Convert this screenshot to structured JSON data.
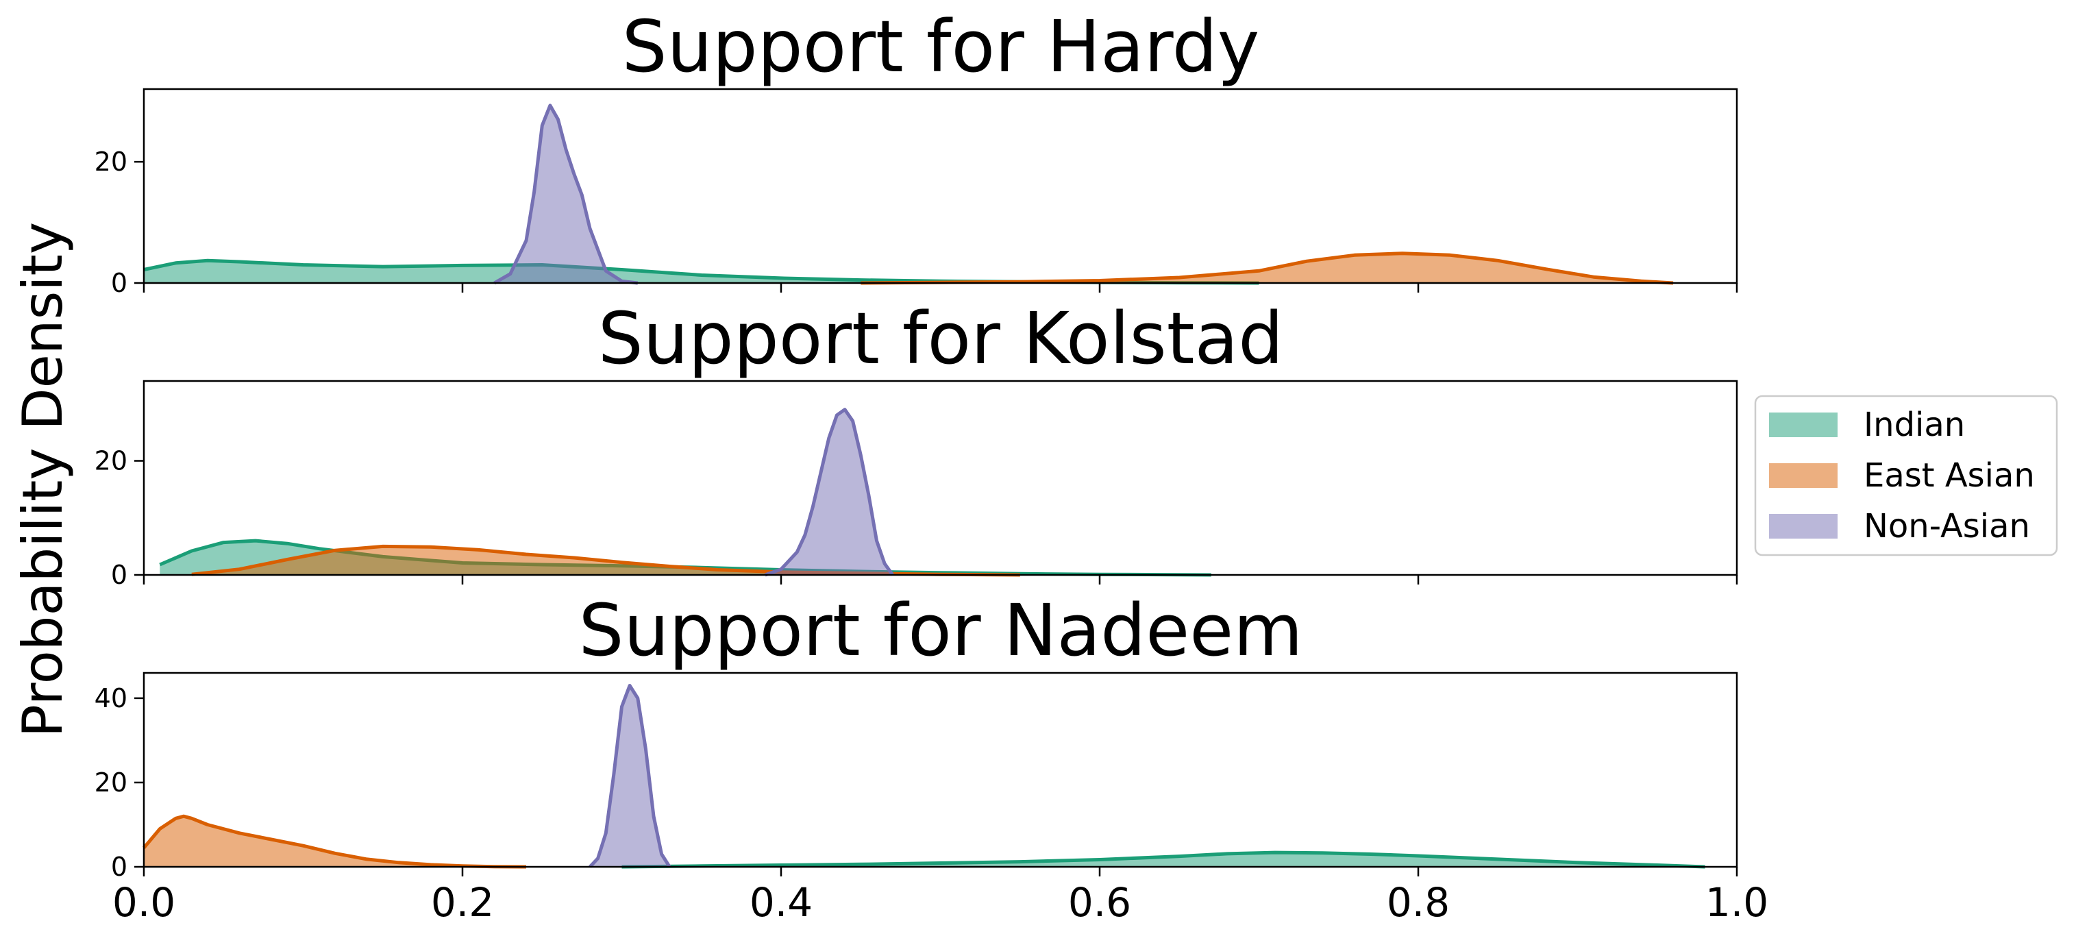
{
  "figure": {
    "ylabel": "Probability Density"
  },
  "colors": {
    "Indian": "#1b9e77",
    "East Asian": "#d95f02",
    "Non-Asian": "#7570b3"
  },
  "legend": {
    "placement": "right-center",
    "entries": [
      {
        "name": "Indian",
        "color": "#1b9e77"
      },
      {
        "name": "East Asian",
        "color": "#d95f02"
      },
      {
        "name": "Non-Asian",
        "color": "#7570b3"
      }
    ]
  },
  "chart_data": [
    {
      "type": "area",
      "title": "Support for Hardy",
      "xlim": [
        0,
        1
      ],
      "ylim": [
        0,
        32
      ],
      "yticks": [
        0,
        20
      ],
      "xticks": [
        0.0,
        0.2,
        0.4,
        0.6,
        0.8,
        1.0
      ],
      "xtick_labels": [],
      "grid": false,
      "series": [
        {
          "name": "Indian",
          "color": "#1b9e77",
          "x": [
            0.0,
            0.02,
            0.04,
            0.06,
            0.1,
            0.15,
            0.2,
            0.25,
            0.3,
            0.35,
            0.4,
            0.45,
            0.5,
            0.55,
            0.6,
            0.65,
            0.7
          ],
          "y": [
            2.2,
            3.3,
            3.7,
            3.5,
            3.0,
            2.7,
            2.9,
            3.0,
            2.2,
            1.3,
            0.8,
            0.5,
            0.3,
            0.2,
            0.1,
            0.05,
            0.0
          ]
        },
        {
          "name": "East Asian",
          "color": "#d95f02",
          "x": [
            0.45,
            0.5,
            0.55,
            0.6,
            0.65,
            0.7,
            0.73,
            0.76,
            0.79,
            0.82,
            0.85,
            0.88,
            0.91,
            0.94,
            0.96
          ],
          "y": [
            0.0,
            0.1,
            0.2,
            0.4,
            0.9,
            2.0,
            3.6,
            4.6,
            4.9,
            4.6,
            3.7,
            2.3,
            1.0,
            0.3,
            0.0
          ]
        },
        {
          "name": "Non-Asian",
          "color": "#7570b3",
          "x": [
            0.22,
            0.23,
            0.24,
            0.245,
            0.25,
            0.255,
            0.26,
            0.265,
            0.27,
            0.275,
            0.28,
            0.29,
            0.3,
            0.31
          ],
          "y": [
            0.0,
            1.5,
            7.0,
            15.0,
            26.0,
            29.3,
            27.0,
            22.0,
            18.0,
            14.5,
            9.0,
            2.0,
            0.3,
            0.0
          ]
        }
      ]
    },
    {
      "type": "area",
      "title": "Support for Kolstad",
      "xlim": [
        0,
        1
      ],
      "ylim": [
        0,
        34
      ],
      "yticks": [
        0,
        20
      ],
      "xticks": [
        0.0,
        0.2,
        0.4,
        0.6,
        0.8,
        1.0
      ],
      "xtick_labels": [],
      "grid": false,
      "series": [
        {
          "name": "Indian",
          "color": "#1b9e77",
          "x": [
            0.01,
            0.03,
            0.05,
            0.07,
            0.09,
            0.11,
            0.15,
            0.2,
            0.25,
            0.3,
            0.35,
            0.4,
            0.45,
            0.5,
            0.55,
            0.6,
            0.67
          ],
          "y": [
            1.8,
            4.2,
            5.7,
            6.0,
            5.5,
            4.6,
            3.2,
            2.1,
            1.8,
            1.6,
            1.3,
            0.9,
            0.6,
            0.4,
            0.2,
            0.1,
            0.0
          ]
        },
        {
          "name": "East Asian",
          "color": "#d95f02",
          "x": [
            0.03,
            0.06,
            0.09,
            0.12,
            0.15,
            0.18,
            0.21,
            0.24,
            0.27,
            0.3,
            0.33,
            0.36,
            0.4,
            0.45,
            0.5,
            0.55
          ],
          "y": [
            0.1,
            1.0,
            2.7,
            4.3,
            5.0,
            4.9,
            4.4,
            3.6,
            3.0,
            2.2,
            1.5,
            0.9,
            0.5,
            0.3,
            0.1,
            0.0
          ]
        },
        {
          "name": "Non-Asian",
          "color": "#7570b3",
          "x": [
            0.39,
            0.4,
            0.41,
            0.415,
            0.42,
            0.425,
            0.43,
            0.435,
            0.44,
            0.445,
            0.45,
            0.455,
            0.46,
            0.465,
            0.47
          ],
          "y": [
            0.0,
            1.0,
            4.0,
            7.0,
            12.0,
            18.0,
            24.0,
            28.0,
            29.0,
            27.0,
            21.0,
            14.0,
            6.0,
            2.0,
            0.0
          ]
        }
      ]
    },
    {
      "type": "area",
      "title": "Support for Nadeem",
      "xlim": [
        0,
        1
      ],
      "ylim": [
        0,
        46
      ],
      "yticks": [
        0,
        20,
        40
      ],
      "xticks": [
        0.0,
        0.2,
        0.4,
        0.6,
        0.8,
        1.0
      ],
      "xtick_labels": [
        "0.0",
        "0.2",
        "0.4",
        "0.6",
        "0.8",
        "1.0"
      ],
      "grid": false,
      "series": [
        {
          "name": "Indian",
          "color": "#1b9e77",
          "x": [
            0.3,
            0.35,
            0.4,
            0.45,
            0.5,
            0.55,
            0.6,
            0.65,
            0.68,
            0.71,
            0.74,
            0.77,
            0.8,
            0.85,
            0.9,
            0.95,
            0.98
          ],
          "y": [
            0.0,
            0.2,
            0.4,
            0.6,
            0.9,
            1.2,
            1.7,
            2.5,
            3.1,
            3.4,
            3.3,
            3.0,
            2.6,
            1.8,
            1.0,
            0.4,
            0.0
          ]
        },
        {
          "name": "East Asian",
          "color": "#d95f02",
          "x": [
            0.0,
            0.01,
            0.02,
            0.025,
            0.03,
            0.04,
            0.06,
            0.08,
            0.1,
            0.12,
            0.14,
            0.16,
            0.18,
            0.2,
            0.22,
            0.24
          ],
          "y": [
            4.5,
            9.0,
            11.5,
            12.0,
            11.5,
            10.0,
            8.0,
            6.5,
            5.0,
            3.2,
            1.8,
            1.0,
            0.5,
            0.2,
            0.05,
            0.0
          ]
        },
        {
          "name": "Non-Asian",
          "color": "#7570b3",
          "x": [
            0.28,
            0.285,
            0.29,
            0.295,
            0.3,
            0.305,
            0.31,
            0.315,
            0.32,
            0.325,
            0.33
          ],
          "y": [
            0.0,
            2.0,
            8.0,
            22.0,
            38.0,
            43.0,
            40.0,
            28.0,
            12.0,
            3.0,
            0.0
          ]
        }
      ]
    }
  ]
}
